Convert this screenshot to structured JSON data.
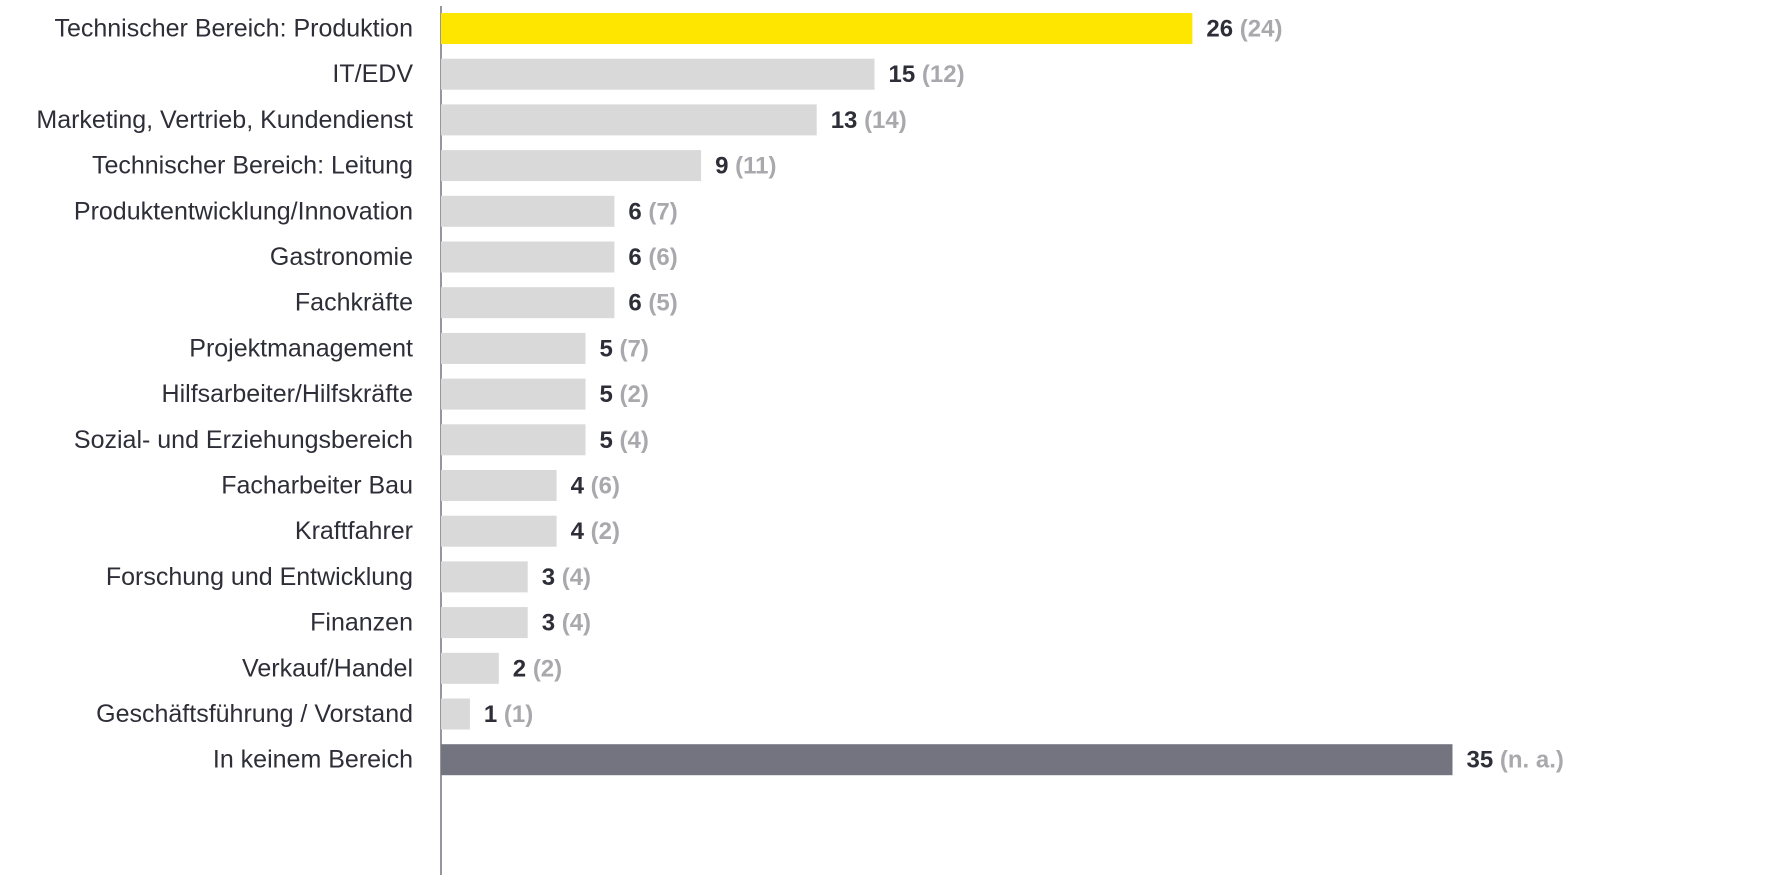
{
  "chart_data": {
    "type": "bar",
    "orientation": "horizontal",
    "title": "",
    "xlabel": "",
    "ylabel": "",
    "xlim": [
      0,
      35
    ],
    "grid": false,
    "legend": "none",
    "categories": [
      "Technischer Bereich: Produktion",
      "IT/EDV",
      "Marketing, Vertrieb, Kundendienst",
      "Technischer Bereich: Leitung",
      "Produktentwicklung/Innovation",
      "Gastronomie",
      "Fachkräfte",
      "Projektmanagement",
      "Hilfsarbeiter/Hilfskräfte",
      "Sozial- und Erziehungsbereich",
      "Facharbeiter Bau",
      "Kraftfahrer",
      "Forschung und Entwicklung",
      "Finanzen",
      "Verkauf/Handel",
      "Geschäftsführung / Vorstand",
      "In keinem Bereich"
    ],
    "values": [
      26,
      15,
      13,
      9,
      6,
      6,
      6,
      5,
      5,
      5,
      4,
      4,
      3,
      3,
      2,
      1,
      35
    ],
    "previous_values": [
      "24",
      "12",
      "14",
      "11",
      "7",
      "6",
      "5",
      "7",
      "2",
      "4",
      "6",
      "2",
      "4",
      "4",
      "2",
      "1",
      "n. a."
    ],
    "bar_colors": [
      "#ffe600",
      "#d9d9d9",
      "#d9d9d9",
      "#d9d9d9",
      "#d9d9d9",
      "#d9d9d9",
      "#d9d9d9",
      "#d9d9d9",
      "#d9d9d9",
      "#d9d9d9",
      "#d9d9d9",
      "#d9d9d9",
      "#d9d9d9",
      "#d9d9d9",
      "#d9d9d9",
      "#d9d9d9",
      "#747480"
    ],
    "colors": {
      "highlight": "#ffe600",
      "default": "#d9d9d9",
      "other": "#747480",
      "value_text": "#2e2e38",
      "previous_text": "#a9a9ad",
      "axis": "#747480"
    }
  }
}
